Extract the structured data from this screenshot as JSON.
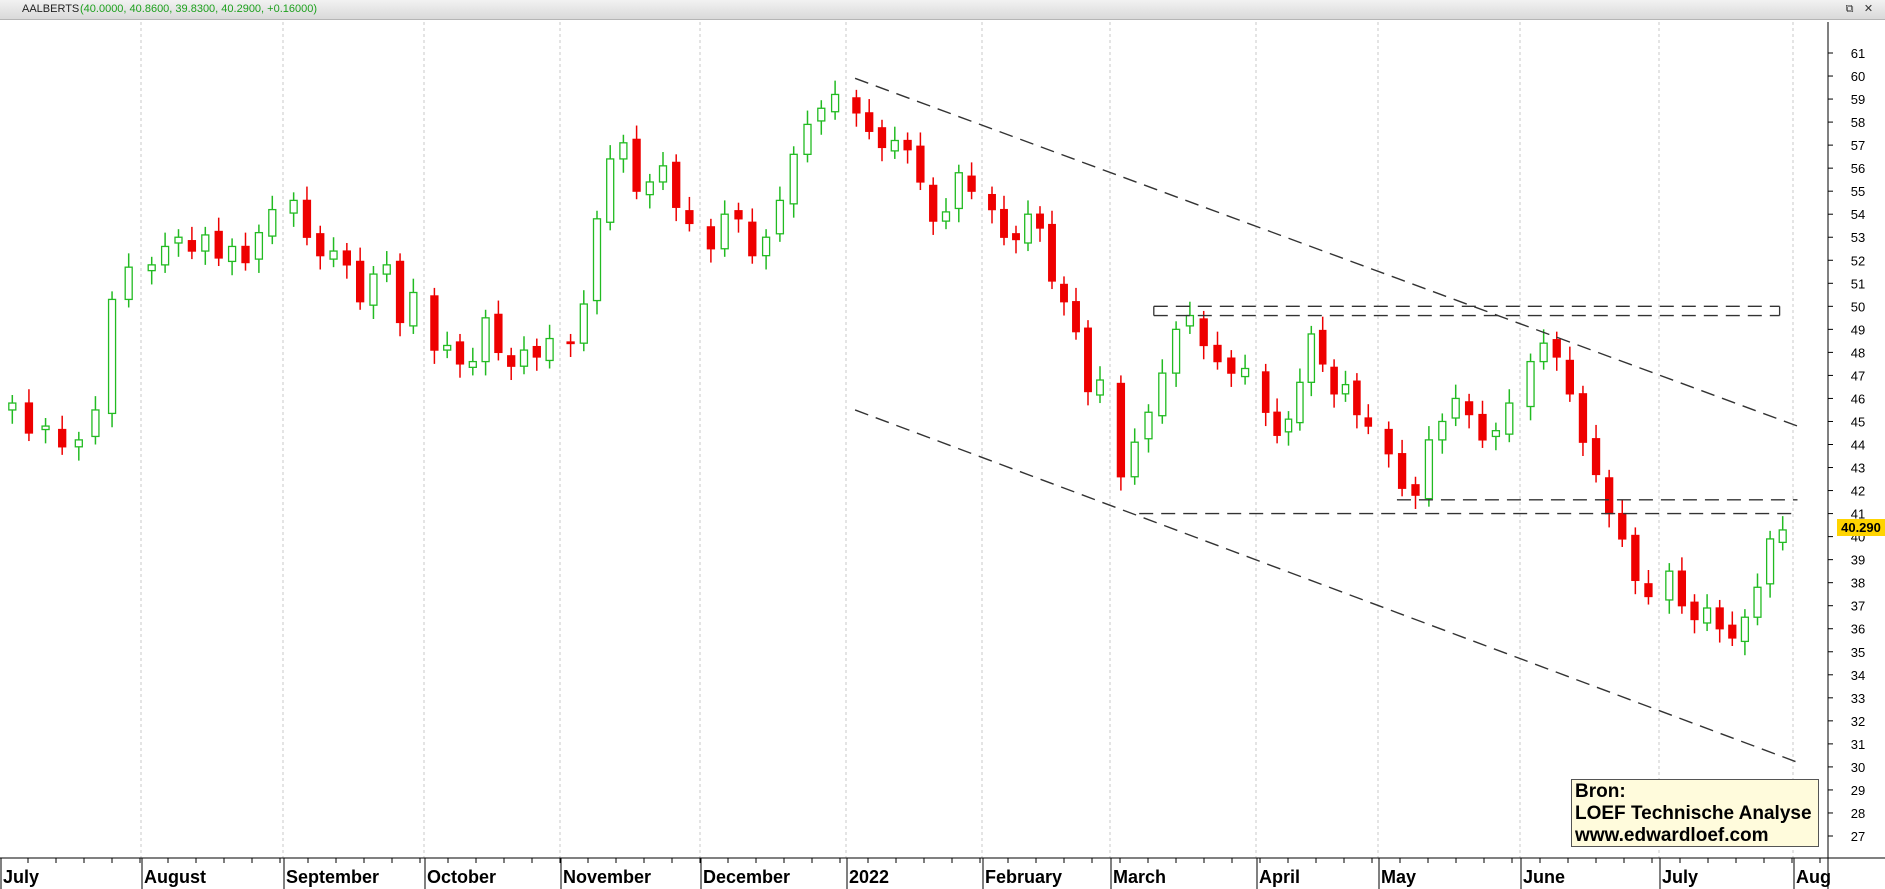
{
  "header": {
    "symbol": "AALBERTS",
    "ohlc_text": "(40.0000, 40.8600, 39.8300, 40.2900, +0.16000)"
  },
  "window_controls": [
    "restore-icon",
    "close-icon"
  ],
  "colors": {
    "up": "#22bb22",
    "down": "#ee0000",
    "price_tag": "#ffd400",
    "grid": "#c8c8c8",
    "trendline": "#333333"
  },
  "price_label": "40.290",
  "source_box": {
    "line1": "Bron:",
    "line2": "LOEF Technische Analyse",
    "line3": "www.edwardloef.com"
  },
  "chart_data": {
    "type": "candlestick",
    "symbol": "AALBERTS",
    "last": {
      "open": 40.0,
      "high": 40.86,
      "low": 39.83,
      "close": 40.29,
      "change": 0.16
    },
    "ylim": [
      26,
      62
    ],
    "y_ticks": [
      27,
      28,
      29,
      30,
      31,
      32,
      33,
      34,
      35,
      36,
      37,
      38,
      39,
      40,
      41,
      42,
      43,
      44,
      45,
      46,
      47,
      48,
      49,
      50,
      51,
      52,
      53,
      54,
      55,
      56,
      57,
      58,
      59,
      60,
      61
    ],
    "x_labels": [
      "July",
      "August",
      "September",
      "October",
      "November",
      "December",
      "2022",
      "February",
      "March",
      "April",
      "May",
      "June",
      "July",
      "Aug"
    ],
    "grid": true,
    "month_closes": [
      {
        "month": "Jul 2021",
        "values": [
          45.8,
          44.5,
          44.8,
          43.9,
          44.2,
          45.5,
          50.3,
          51.7
        ]
      },
      {
        "month": "Aug 2021",
        "values": [
          51.8,
          52.6,
          53.0,
          52.4,
          53.1,
          52.1,
          52.6,
          51.9,
          53.2,
          54.2
        ]
      },
      {
        "month": "Sep 2021",
        "values": [
          54.6,
          53.0,
          52.2,
          52.4,
          51.8,
          50.2,
          51.4,
          51.8,
          49.3,
          50.6
        ]
      },
      {
        "month": "Oct 2021",
        "values": [
          48.1,
          48.3,
          47.5,
          47.6,
          49.5,
          48.0,
          47.4,
          48.1,
          47.8,
          48.6
        ]
      },
      {
        "month": "Nov 2021",
        "values": [
          48.4,
          50.1,
          53.8,
          56.4,
          57.1,
          55.0,
          55.4,
          56.1,
          54.3,
          53.6
        ]
      },
      {
        "month": "Dec 2021",
        "values": [
          52.5,
          54.0,
          53.8,
          52.2,
          53.0,
          54.6,
          56.6,
          57.9,
          58.6,
          59.2
        ]
      },
      {
        "month": "Jan 2022",
        "values": [
          58.4,
          57.6,
          56.9,
          57.2,
          56.8,
          55.4,
          53.7,
          54.1,
          55.8,
          55.0
        ]
      },
      {
        "month": "Feb 2022",
        "values": [
          54.2,
          53.0,
          52.9,
          54.0,
          53.4,
          51.1,
          50.2,
          48.9,
          46.3,
          46.8
        ]
      },
      {
        "month": "Mar 2022",
        "values": [
          42.6,
          44.1,
          45.4,
          47.1,
          49.0,
          49.6,
          48.3,
          47.6,
          47.1,
          47.3
        ]
      },
      {
        "month": "Apr 2022",
        "values": [
          45.4,
          44.4,
          45.1,
          46.7,
          48.8,
          47.5,
          46.2,
          46.6,
          45.3,
          44.8
        ]
      },
      {
        "month": "May 2022",
        "values": [
          43.6,
          42.1,
          41.8,
          44.2,
          45.0,
          46.0,
          45.3,
          44.2,
          44.6,
          45.8
        ]
      },
      {
        "month": "Jun 2022",
        "values": [
          47.6,
          48.4,
          47.8,
          46.2,
          44.1,
          42.7,
          41.0,
          39.9,
          38.1,
          37.4
        ]
      },
      {
        "month": "Jul 2022",
        "values": [
          38.5,
          37.0,
          36.4,
          36.9,
          36.0,
          35.6,
          36.5,
          37.8,
          39.9,
          40.29
        ]
      }
    ],
    "lines": [
      {
        "name": "upper-trendline",
        "style": "dashed",
        "points": [
          [
            "2022-01-03",
            59.9
          ],
          [
            "2022-08-02",
            44.8
          ]
        ]
      },
      {
        "name": "lower-trendline",
        "style": "dashed",
        "points": [
          [
            "2022-01-03",
            45.5
          ],
          [
            "2022-08-02",
            30.2
          ]
        ]
      },
      {
        "name": "resistance-box-top",
        "style": "dashed",
        "points": [
          [
            "2022-03-10",
            50.0
          ],
          [
            "2022-07-28",
            50.0
          ]
        ]
      },
      {
        "name": "resistance-box-bottom",
        "style": "dashed",
        "points": [
          [
            "2022-03-10",
            49.6
          ],
          [
            "2022-07-28",
            49.6
          ]
        ]
      },
      {
        "name": "support-level-1",
        "style": "dashed",
        "points": [
          [
            "2022-03-07",
            41.0
          ],
          [
            "2022-08-02",
            41.0
          ]
        ]
      },
      {
        "name": "support-level-2",
        "style": "dashed",
        "points": [
          [
            "2022-05-05",
            41.6
          ],
          [
            "2022-08-02",
            41.6
          ]
        ]
      }
    ]
  }
}
